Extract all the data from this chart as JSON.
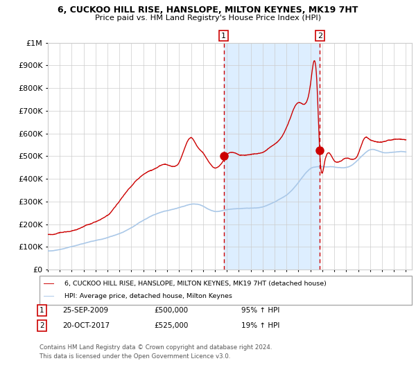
{
  "title": "6, CUCKOO HILL RISE, HANSLOPE, MILTON KEYNES, MK19 7HT",
  "subtitle": "Price paid vs. HM Land Registry's House Price Index (HPI)",
  "ylim": [
    0,
    1000000
  ],
  "xlim_start": 1995.0,
  "xlim_end": 2025.5,
  "background_color": "#ffffff",
  "plot_bg_color": "#ffffff",
  "grid_color": "#cccccc",
  "red_line_color": "#cc0000",
  "blue_line_color": "#aac8e8",
  "shaded_color": "#ddeeff",
  "dashed_line_color": "#cc0000",
  "sale1_x": 2009.73,
  "sale1_y": 500000,
  "sale1_label": "1",
  "sale1_date": "25-SEP-2009",
  "sale1_price": "£500,000",
  "sale1_hpi": "95% ↑ HPI",
  "sale2_x": 2017.8,
  "sale2_y": 525000,
  "sale2_label": "2",
  "sale2_date": "20-OCT-2017",
  "sale2_price": "£525,000",
  "sale2_hpi": "19% ↑ HPI",
  "legend_red_label": "6, CUCKOO HILL RISE, HANSLOPE, MILTON KEYNES, MK19 7HT (detached house)",
  "legend_blue_label": "HPI: Average price, detached house, Milton Keynes",
  "footer1": "Contains HM Land Registry data © Crown copyright and database right 2024.",
  "footer2": "This data is licensed under the Open Government Licence v3.0.",
  "yticks": [
    0,
    100000,
    200000,
    300000,
    400000,
    500000,
    600000,
    700000,
    800000,
    900000,
    1000000
  ],
  "ytick_labels": [
    "£0",
    "£100K",
    "£200K",
    "£300K",
    "£400K",
    "£500K",
    "£600K",
    "£700K",
    "£800K",
    "£900K",
    "£1M"
  ],
  "hpi_years": [
    1995,
    1996,
    1997,
    1998,
    1999,
    2000,
    2001,
    2002,
    2003,
    2004,
    2005,
    2006,
    2007,
    2008,
    2009,
    2010,
    2011,
    2012,
    2013,
    2014,
    2015,
    2016,
    2017,
    2018,
    2019,
    2020,
    2021,
    2022,
    2023,
    2024,
    2025
  ],
  "hpi_vals": [
    82000,
    90000,
    102000,
    115000,
    128000,
    142000,
    160000,
    185000,
    215000,
    240000,
    255000,
    268000,
    282000,
    272000,
    248000,
    255000,
    260000,
    262000,
    268000,
    290000,
    320000,
    375000,
    435000,
    442000,
    442000,
    440000,
    475000,
    520000,
    508000,
    508000,
    508000
  ],
  "prop_years": [
    1995,
    1996,
    1997,
    1998,
    1999,
    2000,
    2001,
    2002,
    2003,
    2004,
    2005,
    2006,
    2007,
    2007.5,
    2008,
    2009.0,
    2009.73,
    2010,
    2011,
    2012,
    2013,
    2014,
    2015,
    2016,
    2017.0,
    2017.55,
    2017.8,
    2018.2,
    2019,
    2020,
    2021,
    2021.5,
    2022,
    2022.5,
    2023,
    2024,
    2025
  ],
  "prop_vals": [
    155000,
    160000,
    175000,
    195000,
    218000,
    248000,
    315000,
    385000,
    435000,
    462000,
    480000,
    492000,
    598000,
    560000,
    530000,
    463000,
    500000,
    525000,
    528000,
    528000,
    540000,
    582000,
    655000,
    762000,
    842000,
    845000,
    525000,
    502000,
    512000,
    522000,
    542000,
    610000,
    608000,
    600000,
    600000,
    608000,
    608000
  ]
}
